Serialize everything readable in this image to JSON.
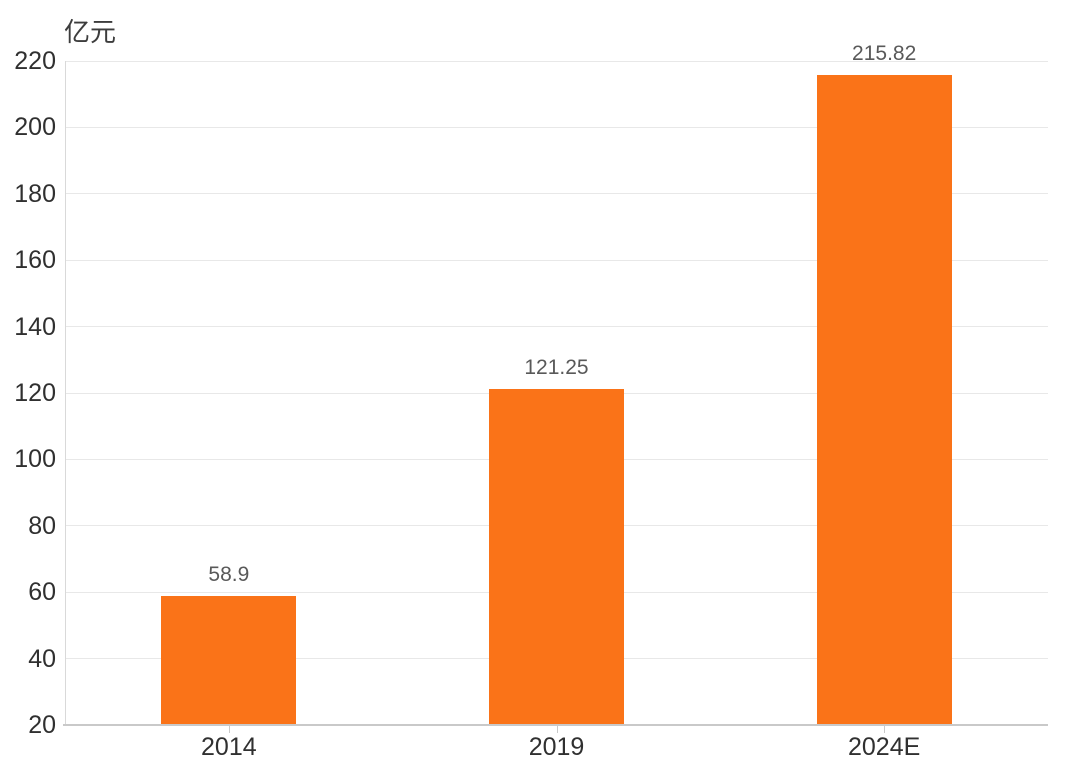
{
  "chart_data": {
    "type": "bar",
    "title": "",
    "xlabel": "",
    "ylabel": "亿元",
    "categories": [
      "2014",
      "2019",
      "2024E"
    ],
    "values": [
      58.9,
      121.25,
      215.82
    ],
    "value_labels": [
      "58.9",
      "121.25",
      "215.82"
    ],
    "yticks": [
      20,
      40,
      60,
      80,
      100,
      120,
      140,
      160,
      180,
      200,
      220
    ],
    "ylim": [
      20,
      220
    ],
    "grid": true,
    "legend": false,
    "bar_color": "#FA7318",
    "value_label_color": "#595959",
    "axis_label_color": "#303030"
  }
}
